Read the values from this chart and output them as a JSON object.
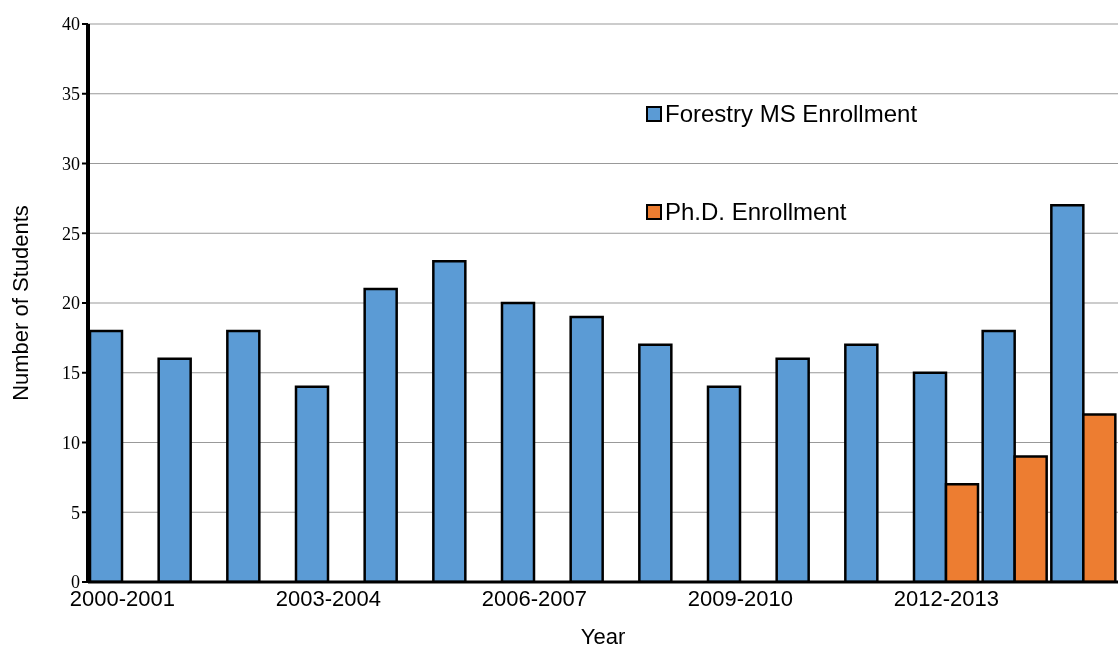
{
  "chart_data": {
    "type": "bar",
    "xlabel": "Year",
    "ylabel": "Number of Students",
    "categories": [
      "2000-2001",
      null,
      null,
      "2003-2004",
      null,
      null,
      "2006-2007",
      null,
      null,
      "2009-2010",
      null,
      null,
      "2012-2013",
      null,
      null
    ],
    "series": [
      {
        "name": "Forestry MS Enrollment",
        "color": "#5b9bd5",
        "values": [
          18,
          16,
          18,
          14,
          21,
          23,
          20,
          19,
          17,
          14,
          16,
          17,
          15,
          18,
          27
        ]
      },
      {
        "name": "Ph.D. Enrollment",
        "color": "#ed7d31",
        "values": [
          null,
          null,
          null,
          null,
          null,
          null,
          null,
          null,
          null,
          null,
          null,
          null,
          7,
          9,
          12
        ]
      }
    ],
    "ylim": [
      0,
      40
    ],
    "yticks": [
      0,
      5,
      10,
      15,
      20,
      25,
      30,
      35,
      40
    ],
    "grid": "y",
    "legend": "top right"
  }
}
